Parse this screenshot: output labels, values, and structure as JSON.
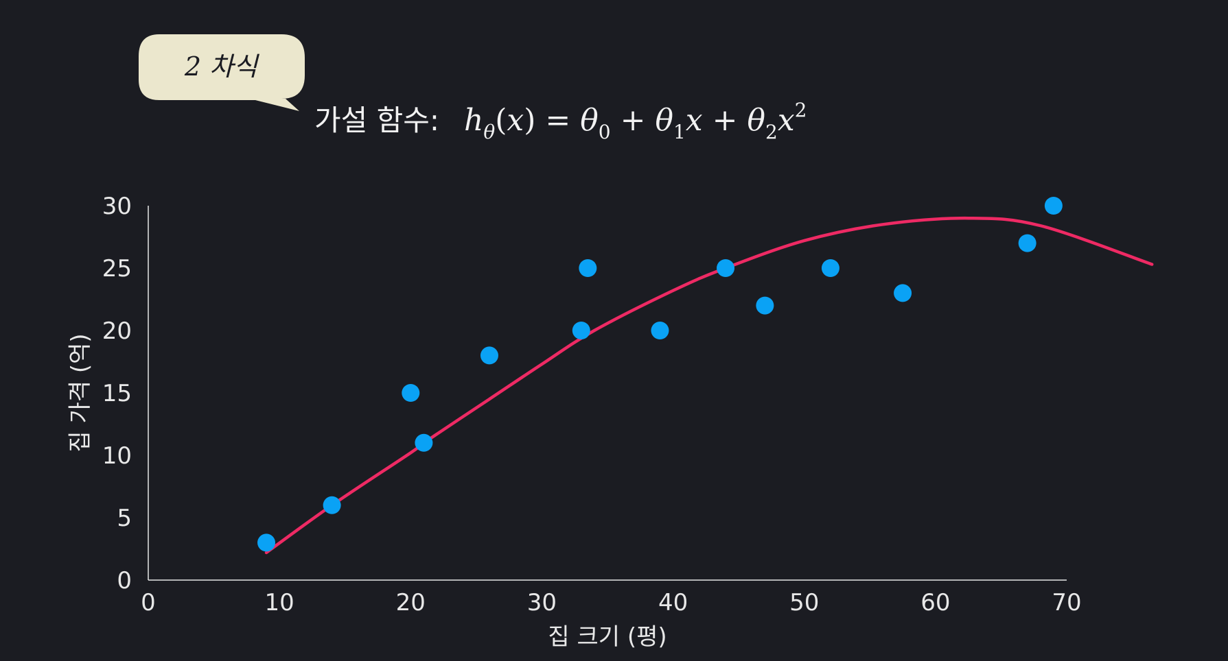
{
  "callout": {
    "label": "2 차식"
  },
  "formula": {
    "prefix": "가설 함수:",
    "h": "h",
    "theta": "θ",
    "x": "x",
    "sub0": "0",
    "sub1": "1",
    "sub2": "2",
    "sup2": "2",
    "open": "(",
    "close": ")",
    "eq": "=",
    "plus": "+"
  },
  "colors": {
    "background": "#1b1c22",
    "points": "#0aa2f5",
    "curve": "#ee2a64",
    "axis": "#e8e8e8",
    "bubble": "#ebe7cd"
  },
  "chart_data": {
    "type": "scatter",
    "xlabel": "집 크기 (평)",
    "ylabel": "집 가격 (억)",
    "xlim": [
      0,
      70
    ],
    "ylim": [
      0,
      30
    ],
    "xticks": [
      0,
      10,
      20,
      30,
      40,
      50,
      60,
      70
    ],
    "yticks": [
      0,
      5,
      10,
      15,
      20,
      25,
      30
    ],
    "grid": false,
    "series": [
      {
        "type": "scatter",
        "x": [
          9,
          14,
          20,
          21,
          26,
          33,
          33.5,
          39,
          44,
          47,
          52,
          57.5,
          67,
          69
        ],
        "y": [
          3,
          6,
          15,
          11,
          18,
          20,
          25,
          20,
          25,
          22,
          25,
          23,
          27,
          30
        ]
      },
      {
        "type": "line",
        "x": [
          9,
          14,
          20,
          21,
          26,
          30,
          34,
          40,
          44,
          50,
          56,
          62.5,
          68,
          76.5
        ],
        "y": [
          2.2,
          6,
          10.2,
          11,
          14.5,
          17.3,
          20,
          23.2,
          25,
          27.2,
          28.5,
          29,
          28.4,
          25.3
        ]
      }
    ]
  }
}
